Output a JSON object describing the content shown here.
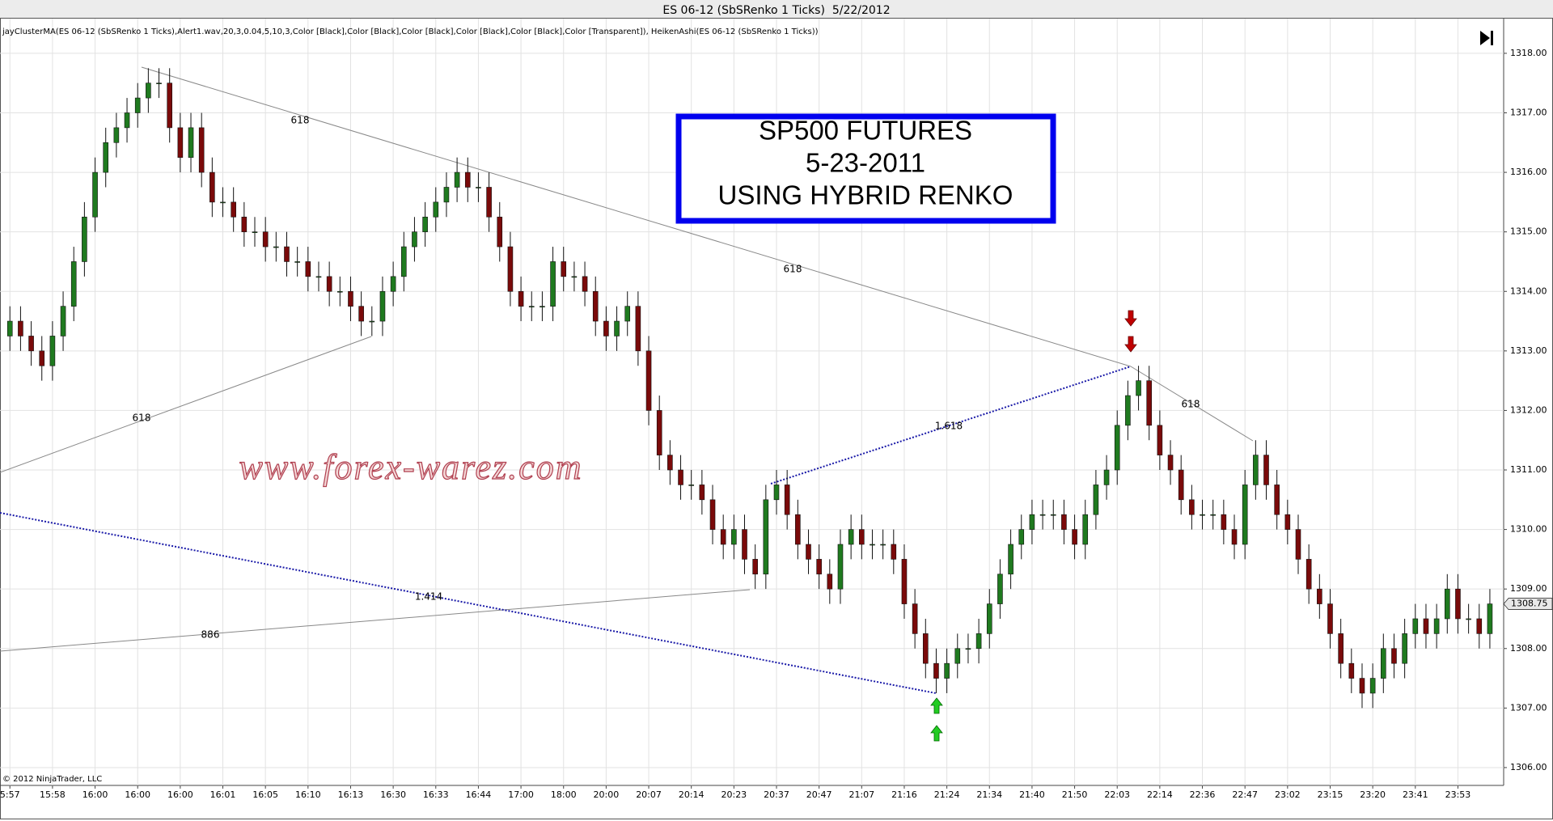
{
  "chart_data": {
    "type": "candlestick",
    "title": "ES 06-12 (SbSRenko 1 Ticks)  5/22/2012",
    "indicator_label": "jayClusterMA(ES 06-12 (SbSRenko 1 Ticks),Alert1.wav,20,3,0.04,5,10,3,Color [Black],Color [Black],Color [Black],Color [Black],Color [Black],Color [Transparent]), HeikenAshi(ES 06-12 (SbSRenko 1 Ticks))",
    "copyright": "© 2012 NinjaTrader, LLC",
    "annotation_box": [
      "SP500 FUTURES",
      "5-23-2011",
      "USING HYBRID RENKO"
    ],
    "watermark": "www.forex-warez.com",
    "fib_labels": [
      "618",
      "618",
      "618",
      "618",
      "886",
      "1.414",
      "1.618"
    ],
    "up_color": "#1f7a1f",
    "down_color": "#7a0a0a",
    "grid": true,
    "ylim": [
      1305.7,
      1318.23
    ],
    "yticks": [
      {
        "value": 1306,
        "label": "1306.00"
      },
      {
        "value": 1307,
        "label": "1307.00"
      },
      {
        "value": 1308,
        "label": "1308.00"
      },
      {
        "value": 1309,
        "label": "1309.00"
      },
      {
        "value": 1310,
        "label": "1310.00"
      },
      {
        "value": 1311,
        "label": "1311.00"
      },
      {
        "value": 1312,
        "label": "1312.00"
      },
      {
        "value": 1313,
        "label": "1313.00"
      },
      {
        "value": 1314,
        "label": "1314.00"
      },
      {
        "value": 1315,
        "label": "1315.00"
      },
      {
        "value": 1316,
        "label": "1316.00"
      },
      {
        "value": 1317,
        "label": "1317.00"
      },
      {
        "value": 1318,
        "label": "1318.00"
      }
    ],
    "last_price": 1308.75,
    "categories": [
      "5:57",
      null,
      null,
      null,
      "15:58",
      null,
      null,
      null,
      "16:00",
      null,
      null,
      null,
      "16:00",
      null,
      null,
      null,
      "16:00",
      null,
      null,
      null,
      "16:01",
      null,
      null,
      null,
      "16:05",
      null,
      null,
      null,
      "16:10",
      null,
      null,
      null,
      "16:13",
      null,
      null,
      null,
      "16:30",
      null,
      null,
      null,
      "16:33",
      null,
      null,
      null,
      "16:44",
      null,
      null,
      null,
      "17:00",
      null,
      null,
      null,
      "18:00",
      null,
      null,
      null,
      "20:00",
      null,
      null,
      null,
      "20:07",
      null,
      null,
      null,
      "20:14",
      null,
      null,
      null,
      "20:23",
      null,
      null,
      null,
      "20:37",
      null,
      null,
      null,
      "20:47",
      null,
      null,
      null,
      "21:07",
      null,
      null,
      null,
      "21:16",
      null,
      null,
      null,
      "21:24",
      null,
      null,
      null,
      "21:34",
      null,
      null,
      null,
      "21:40",
      null,
      null,
      null,
      "21:50",
      null,
      null,
      null,
      "22:03",
      null,
      null,
      null,
      "22:14",
      null,
      null,
      null,
      "22:36",
      null,
      null,
      null,
      "22:47",
      null,
      null,
      null,
      "23:02",
      null,
      null,
      null,
      "23:15",
      null,
      null,
      null,
      "23:20",
      null,
      null,
      null,
      "23:41",
      null,
      null,
      null,
      "23:53",
      null,
      null,
      null
    ],
    "open": [
      1313.25,
      1313.5,
      1313.25,
      1313.0,
      1312.75,
      1313.25,
      1313.75,
      1314.5,
      1315.25,
      1316.0,
      1316.5,
      1316.75,
      1317.0,
      1317.25,
      1317.5,
      1317.5,
      1316.75,
      1316.25,
      1316.75,
      1316.0,
      1315.5,
      1315.5,
      1315.25,
      1315.0,
      1315.0,
      1314.75,
      1314.75,
      1314.5,
      1314.5,
      1314.25,
      1314.25,
      1314.0,
      1314.0,
      1313.75,
      1313.5,
      1313.5,
      1314.0,
      1314.25,
      1314.75,
      1315.0,
      1315.25,
      1315.5,
      1315.75,
      1316.0,
      1315.75,
      1315.75,
      1315.25,
      1314.75,
      1314.0,
      1313.75,
      1313.75,
      1313.75,
      1314.5,
      1314.25,
      1314.25,
      1314.0,
      1313.5,
      1313.25,
      1313.5,
      1313.75,
      1313.0,
      1312.0,
      1311.25,
      1311.0,
      1310.75,
      1310.75,
      1310.5,
      1310.0,
      1309.75,
      1310.0,
      1309.5,
      1309.25,
      1310.5,
      1310.75,
      1310.25,
      1309.75,
      1309.5,
      1309.25,
      1309.0,
      1309.75,
      1310.0,
      1309.75,
      1309.75,
      1309.75,
      1309.5,
      1308.75,
      1308.25,
      1307.75,
      1307.5,
      1307.75,
      1308.0,
      1308.0,
      1308.25,
      1308.75,
      1309.25,
      1309.75,
      1310.0,
      1310.25,
      1310.25,
      1310.25,
      1310.0,
      1309.75,
      1310.25,
      1310.75,
      1311.0,
      1311.75,
      1312.25,
      1312.5,
      1311.75,
      1311.25,
      1311.0,
      1310.5,
      1310.25,
      1310.25,
      1310.25,
      1310.0,
      1309.75,
      1310.75,
      1311.25,
      1310.75,
      1310.25,
      1310.0,
      1309.5,
      1309.0,
      1308.75,
      1308.25,
      1307.75,
      1307.5,
      1307.25,
      1307.5,
      1308.0,
      1307.75,
      1308.25,
      1308.5,
      1308.25,
      1308.5,
      1309.0,
      1308.5,
      1308.5,
      1308.25
    ],
    "high": [
      1313.75,
      1313.75,
      1313.5,
      1313.25,
      1313.5,
      1314.0,
      1314.75,
      1315.5,
      1316.25,
      1316.75,
      1317.0,
      1317.25,
      1317.5,
      1317.75,
      1317.75,
      1317.75,
      1317.0,
      1317.0,
      1317.0,
      1316.25,
      1315.75,
      1315.75,
      1315.5,
      1315.25,
      1315.25,
      1315.0,
      1315.0,
      1314.75,
      1314.75,
      1314.5,
      1314.5,
      1314.25,
      1314.25,
      1314.0,
      1313.75,
      1314.25,
      1314.5,
      1315.0,
      1315.25,
      1315.5,
      1315.75,
      1316.0,
      1316.25,
      1316.25,
      1316.0,
      1316.0,
      1315.5,
      1315.0,
      1314.25,
      1314.0,
      1314.0,
      1314.75,
      1314.75,
      1314.5,
      1314.5,
      1314.25,
      1313.75,
      1313.75,
      1314.0,
      1314.0,
      1313.25,
      1312.25,
      1311.5,
      1311.25,
      1311.0,
      1311.0,
      1310.75,
      1310.25,
      1310.25,
      1310.25,
      1309.75,
      1310.75,
      1311.0,
      1311.0,
      1310.5,
      1310.0,
      1309.75,
      1309.5,
      1310.0,
      1310.25,
      1310.25,
      1310.0,
      1310.0,
      1310.0,
      1309.75,
      1309.0,
      1308.5,
      1308.0,
      1308.0,
      1308.25,
      1308.25,
      1308.5,
      1309.0,
      1309.5,
      1310.0,
      1310.25,
      1310.5,
      1310.5,
      1310.5,
      1310.5,
      1310.25,
      1310.5,
      1311.0,
      1311.25,
      1312.0,
      1312.5,
      1312.75,
      1312.75,
      1312.0,
      1311.5,
      1311.25,
      1310.75,
      1310.5,
      1310.5,
      1310.5,
      1310.25,
      1311.0,
      1311.5,
      1311.5,
      1311.0,
      1310.5,
      1310.25,
      1309.75,
      1309.25,
      1309.0,
      1308.5,
      1308.0,
      1307.75,
      1307.75,
      1308.25,
      1308.25,
      1308.5,
      1308.75,
      1308.75,
      1308.75,
      1309.25,
      1309.25,
      1308.75,
      1308.75,
      1309.0
    ],
    "low": [
      1313.0,
      1313.0,
      1312.75,
      1312.5,
      1312.5,
      1313.0,
      1313.5,
      1314.25,
      1315.0,
      1315.75,
      1316.25,
      1316.5,
      1316.75,
      1317.0,
      1317.25,
      1316.5,
      1316.0,
      1316.0,
      1315.75,
      1315.25,
      1315.25,
      1315.0,
      1314.75,
      1314.75,
      1314.5,
      1314.5,
      1314.25,
      1314.25,
      1314.0,
      1314.0,
      1313.75,
      1313.75,
      1313.5,
      1313.25,
      1313.25,
      1313.25,
      1313.75,
      1314.0,
      1314.5,
      1314.75,
      1315.0,
      1315.25,
      1315.5,
      1315.5,
      1315.5,
      1315.0,
      1314.5,
      1313.75,
      1313.5,
      1313.5,
      1313.5,
      1313.5,
      1314.0,
      1314.0,
      1313.75,
      1313.25,
      1313.0,
      1313.0,
      1313.25,
      1312.75,
      1311.75,
      1311.0,
      1310.75,
      1310.5,
      1310.5,
      1310.25,
      1309.75,
      1309.5,
      1309.5,
      1309.25,
      1309.0,
      1309.0,
      1310.25,
      1310.0,
      1309.5,
      1309.25,
      1309.0,
      1308.75,
      1308.75,
      1309.5,
      1309.5,
      1309.5,
      1309.5,
      1309.25,
      1308.5,
      1308.0,
      1307.5,
      1307.25,
      1307.25,
      1307.5,
      1307.75,
      1307.75,
      1308.0,
      1308.5,
      1309.0,
      1309.5,
      1309.75,
      1310.0,
      1310.0,
      1309.75,
      1309.5,
      1309.5,
      1310.0,
      1310.5,
      1310.75,
      1311.5,
      1312.0,
      1311.5,
      1311.0,
      1310.75,
      1310.25,
      1310.0,
      1310.0,
      1310.0,
      1309.75,
      1309.5,
      1309.5,
      1310.5,
      1310.5,
      1310.0,
      1309.75,
      1309.25,
      1308.75,
      1308.5,
      1308.0,
      1307.5,
      1307.25,
      1307.0,
      1307.0,
      1307.25,
      1307.5,
      1307.5,
      1308.0,
      1308.0,
      1308.0,
      1308.25,
      1308.25,
      1308.25,
      1308.0,
      1308.0
    ],
    "close": [
      1313.5,
      1313.25,
      1313.0,
      1312.75,
      1313.25,
      1313.75,
      1314.5,
      1315.25,
      1316.0,
      1316.5,
      1316.75,
      1317.0,
      1317.25,
      1317.5,
      1317.5,
      1316.75,
      1316.25,
      1316.75,
      1316.0,
      1315.5,
      1315.5,
      1315.25,
      1315.0,
      1315.0,
      1314.75,
      1314.75,
      1314.5,
      1314.5,
      1314.25,
      1314.25,
      1314.0,
      1314.0,
      1313.75,
      1313.5,
      1313.5,
      1314.0,
      1314.25,
      1314.75,
      1315.0,
      1315.25,
      1315.5,
      1315.75,
      1316.0,
      1315.75,
      1315.75,
      1315.25,
      1314.75,
      1314.0,
      1313.75,
      1313.75,
      1313.75,
      1314.5,
      1314.25,
      1314.25,
      1314.0,
      1313.5,
      1313.25,
      1313.5,
      1313.75,
      1313.0,
      1312.0,
      1311.25,
      1311.0,
      1310.75,
      1310.75,
      1310.5,
      1310.0,
      1309.75,
      1310.0,
      1309.5,
      1309.25,
      1310.5,
      1310.75,
      1310.25,
      1309.75,
      1309.5,
      1309.25,
      1309.0,
      1309.75,
      1310.0,
      1309.75,
      1309.75,
      1309.75,
      1309.5,
      1308.75,
      1308.25,
      1307.75,
      1307.5,
      1307.75,
      1308.0,
      1308.0,
      1308.25,
      1308.75,
      1309.25,
      1309.75,
      1310.0,
      1310.25,
      1310.25,
      1310.25,
      1310.0,
      1309.75,
      1310.25,
      1310.75,
      1311.0,
      1311.75,
      1312.25,
      1312.5,
      1311.75,
      1311.25,
      1311.0,
      1310.5,
      1310.25,
      1310.25,
      1310.25,
      1310.0,
      1309.75,
      1310.75,
      1311.25,
      1310.75,
      1310.25,
      1310.0,
      1309.5,
      1309.0,
      1308.75,
      1308.25,
      1307.75,
      1307.5,
      1307.25,
      1307.5,
      1308.0,
      1307.75,
      1308.25,
      1308.5,
      1308.25,
      1308.5,
      1309.0,
      1308.5,
      1308.5,
      1308.25,
      1308.75
    ]
  }
}
